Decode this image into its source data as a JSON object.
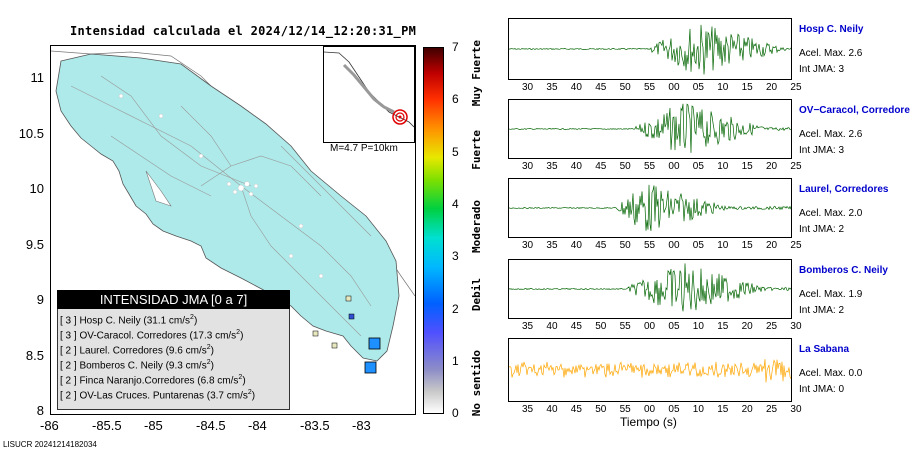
{
  "map": {
    "title": "Intensidad calculada el 2024/12/14_12:20:31_PM",
    "y_ticks": [
      "11",
      "10.5",
      "10",
      "9.5",
      "9",
      "8.5",
      "8"
    ],
    "x_ticks": [
      "-86",
      "-85.5",
      "-85",
      "-84.5",
      "-84",
      "-83.5",
      "-83"
    ],
    "land_color": "#aeeaea",
    "inset_label": "M=4.7 P=10km",
    "legend": {
      "title": "INTENSIDAD JMA [0 a 7]",
      "rows": [
        {
          "jma": "[ 3 ]",
          "text": "Hosp C. Neily (31.1 cm/s",
          "sup": "2",
          "end": ")"
        },
        {
          "jma": "[ 3 ]",
          "text": "OV-Caracol. Corredores (17.3 cm/s",
          "sup": "2",
          "end": ")"
        },
        {
          "jma": "[ 2 ]",
          "text": "Laurel. Corredores (9.6 cm/s",
          "sup": "2",
          "end": ")"
        },
        {
          "jma": "[ 2 ]",
          "text": "Bomberos C. Neily (9.3 cm/s",
          "sup": "2",
          "end": ")"
        },
        {
          "jma": "[ 2 ]",
          "text": "Finca Naranjo.Corredores (6.8 cm/s",
          "sup": "2",
          "end": ")"
        },
        {
          "jma": "[ 2 ]",
          "text": "OV-Las Cruces. Puntarenas (3.7 cm/s",
          "sup": "2",
          "end": ")"
        }
      ]
    }
  },
  "colorbar": {
    "ticks": [
      "7",
      "6",
      "5",
      "4",
      "3",
      "2",
      "1",
      "0"
    ],
    "words": [
      "Muy Fuerte",
      "Fuerte",
      "Moderado",
      "Debil",
      "No sentido"
    ]
  },
  "seismograms": {
    "xlabel": "Tiempo (s)",
    "stations": [
      {
        "name": "Hosp C. Neily",
        "acel": "Acel. Max. 2.6",
        "int": "Int JMA: 3",
        "color": "#006400",
        "ticks": [
          "30",
          "35",
          "40",
          "45",
          "50",
          "55",
          "00",
          "05",
          "10",
          "15",
          "20",
          "25"
        ],
        "start": 0.5,
        "peak": 0.68,
        "amp": 0.9
      },
      {
        "name": "OV−Caracol, Corredore",
        "acel": "Acel. Max. 2.6",
        "int": "Int JMA: 3",
        "color": "#006400",
        "ticks": [
          "30",
          "35",
          "40",
          "45",
          "50",
          "55",
          "00",
          "05",
          "10",
          "15",
          "20",
          "25"
        ],
        "start": 0.45,
        "peak": 0.62,
        "amp": 0.9
      },
      {
        "name": "Laurel, Corredores",
        "acel": "Acel. Max. 2.0",
        "int": "Int JMA: 2",
        "color": "#006400",
        "ticks": [
          "30",
          "35",
          "40",
          "45",
          "50",
          "55",
          "00",
          "05",
          "10",
          "15",
          "20",
          "25"
        ],
        "start": 0.38,
        "peak": 0.48,
        "amp": 0.9
      },
      {
        "name": "Bomberos C. Neily",
        "acel": "Acel. Max. 1.9",
        "int": "Int JMA: 2",
        "color": "#006400",
        "ticks": [
          "35",
          "40",
          "45",
          "50",
          "55",
          "00",
          "05",
          "10",
          "15",
          "20",
          "25",
          "30"
        ],
        "start": 0.42,
        "peak": 0.62,
        "amp": 0.9
      },
      {
        "name": "La Sabana",
        "acel": "Acel. Max. 0.0",
        "int": "Int JMA: 0",
        "color": "#ffa500",
        "ticks": [
          "35",
          "40",
          "45",
          "50",
          "55",
          "00",
          "05",
          "10",
          "15",
          "20",
          "25",
          "30"
        ],
        "start": 0.0,
        "peak": 0.5,
        "amp": 0.45
      }
    ]
  },
  "footer": "LISUCR 20241214182034"
}
